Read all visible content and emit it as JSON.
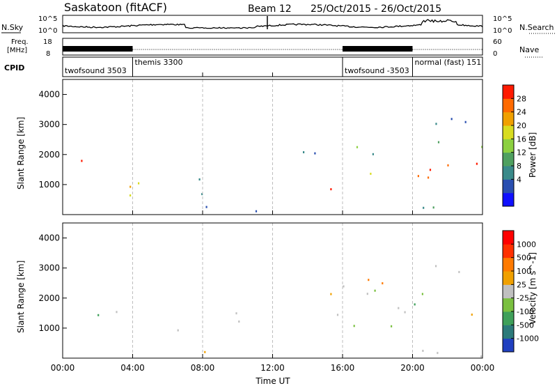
{
  "header": {
    "station": "Saskatoon (fitACF)",
    "beam": "Beam 12",
    "date_range": "25/Oct/2015 - 26/Oct/2015"
  },
  "top_panels": {
    "nsky": {
      "label": "N.Sky",
      "ticks": [
        "10^5",
        "10^0"
      ],
      "right_label": "N.Search",
      "right_ticks": [
        "10^5",
        "10^0"
      ]
    },
    "freq": {
      "label_line1": "Freq.",
      "label_line2": "[MHz]",
      "ticks": [
        "18",
        "8"
      ],
      "right_label": "Nave",
      "right_ticks": [
        "60",
        "0"
      ]
    },
    "cpid": {
      "label": "CPID",
      "segments": [
        {
          "text": "twofsound 3503",
          "start_hour": 0
        },
        {
          "text": "themis 3300",
          "start_hour": 4
        },
        {
          "text": "twofsound -3503",
          "start_hour": 16
        },
        {
          "text": "normal (fast) 151",
          "start_hour": 20
        }
      ]
    }
  },
  "chart_data": [
    {
      "type": "heatmap",
      "title": "",
      "quantity": "Power",
      "xlabel": "Time UT",
      "ylabel": "Slant Range [km]",
      "xlim_hours": [
        0,
        24
      ],
      "x_tick_labels": [
        "00:00",
        "04:00",
        "08:00",
        "12:00",
        "16:00",
        "20:00",
        "00:00"
      ],
      "ylim": [
        0,
        4500
      ],
      "y_ticks": [
        1000,
        2000,
        3000,
        4000
      ],
      "colorbar": {
        "label": "Power [dB]",
        "ticks": [
          4,
          8,
          12,
          16,
          20,
          24,
          28
        ],
        "range": [
          0,
          30
        ],
        "colors": [
          "#1010ff",
          "#2a4fb0",
          "#3a8a8a",
          "#4fa060",
          "#8cd040",
          "#d8dc20",
          "#f0a000",
          "#ff6a00",
          "#ff1a00"
        ]
      },
      "scatter_regions": [
        {
          "t0": 0.0,
          "t1": 4.0,
          "r0": 600,
          "r1": 1900,
          "level": 25
        },
        {
          "t0": 4.2,
          "t1": 7.5,
          "r0": 700,
          "r1": 1500,
          "level": 18
        },
        {
          "t0": 7.5,
          "t1": 10.5,
          "r0": 200,
          "r1": 1800,
          "level": 10
        },
        {
          "t0": 13.5,
          "t1": 24.0,
          "r0": 800,
          "r1": 2000,
          "level": 24
        },
        {
          "t0": 13.0,
          "t1": 24.0,
          "r0": 2000,
          "r1": 3400,
          "level": 12
        },
        {
          "t0": 0.0,
          "t1": 24.0,
          "r0": 80,
          "r1": 300,
          "level": 10
        }
      ]
    },
    {
      "type": "heatmap",
      "title": "",
      "quantity": "Velocity",
      "xlabel": "Time UT",
      "ylabel": "Slant Range [km]",
      "xlim_hours": [
        0,
        24
      ],
      "x_tick_labels": [
        "00:00",
        "04:00",
        "08:00",
        "12:00",
        "16:00",
        "20:00",
        "00:00"
      ],
      "ylim": [
        0,
        4500
      ],
      "y_ticks": [
        1000,
        2000,
        3000,
        4000
      ],
      "colorbar": {
        "label": "Velocity [m s^-1]",
        "tick_labels": [
          "1000",
          "500",
          "100",
          "25",
          "-25",
          "-100",
          "-500",
          "-1000"
        ],
        "colors": [
          "#2040c0",
          "#2c7a7a",
          "#3fa05a",
          "#7ac040",
          "#c0c0c0",
          "#f0a000",
          "#ff7a00",
          "#ff3000",
          "#ff0000"
        ]
      },
      "scatter_regions": [
        {
          "t0": 0.0,
          "t1": 4.0,
          "r0": 600,
          "r1": 1600,
          "level": 250
        },
        {
          "t0": 4.2,
          "t1": 7.5,
          "r0": 700,
          "r1": 1500,
          "level": 0
        },
        {
          "t0": 7.5,
          "t1": 10.5,
          "r0": 200,
          "r1": 1800,
          "level": -50
        },
        {
          "t0": 13.5,
          "t1": 24.0,
          "r0": 800,
          "r1": 2000,
          "level": 0
        },
        {
          "t0": 13.0,
          "t1": 24.0,
          "r0": 2000,
          "r1": 3400,
          "level": 0
        },
        {
          "t0": 0.0,
          "t1": 24.0,
          "r0": 80,
          "r1": 300,
          "level": 100
        }
      ]
    }
  ],
  "colors": {
    "frame": "#000000",
    "dashed_grid": "#bdbdbd",
    "trace": "#000000"
  }
}
